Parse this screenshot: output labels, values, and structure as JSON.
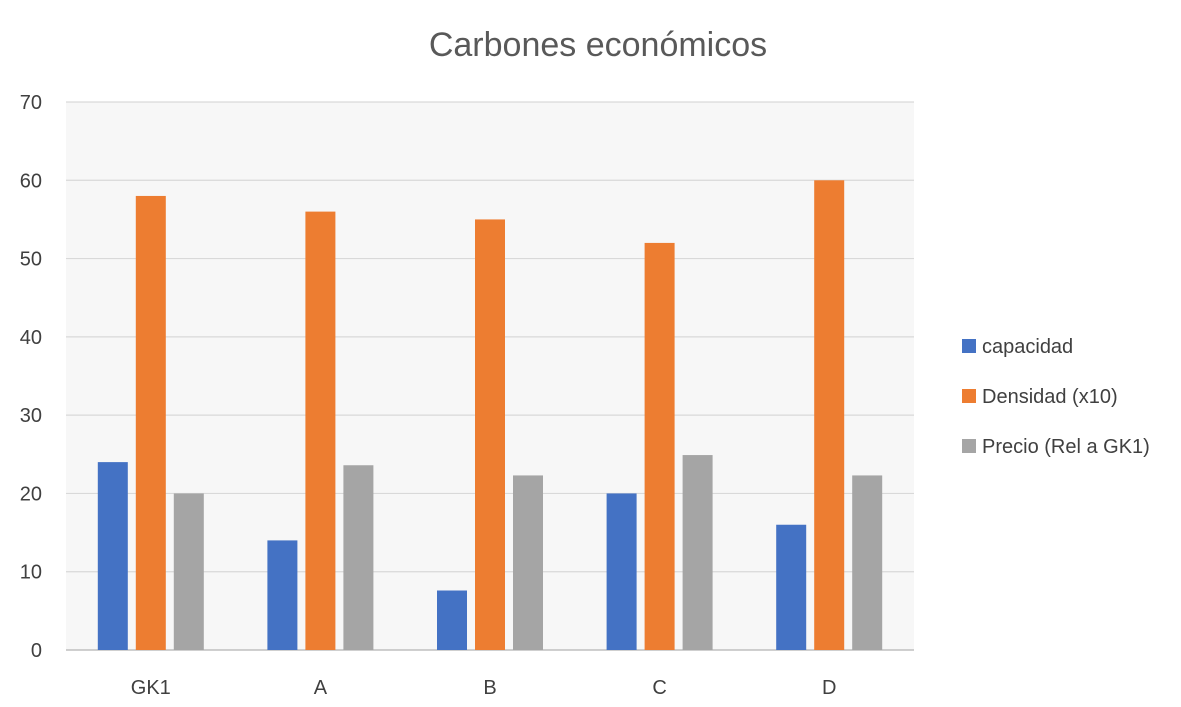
{
  "chart_data": {
    "type": "bar",
    "title": "Carbones económicos",
    "xlabel": "",
    "ylabel": "",
    "categories": [
      "GK1",
      "A",
      "B",
      "C",
      "D"
    ],
    "series": [
      {
        "name": "capacidad",
        "color": "#4472c4",
        "values": [
          24,
          14,
          7.6,
          20,
          16
        ]
      },
      {
        "name": "Densidad (x10)",
        "color": "#ed7d31",
        "values": [
          58,
          56,
          55,
          52,
          60
        ]
      },
      {
        "name": "Precio (Rel a GK1)",
        "color": "#a5a5a5",
        "values": [
          20,
          23.6,
          22.3,
          24.9,
          22.3
        ]
      }
    ],
    "ylim": [
      0,
      70
    ],
    "yticks": [
      "0",
      "10",
      "20",
      "30",
      "40",
      "50",
      "60",
      "70"
    ],
    "grid": true,
    "legend_position": "right",
    "background": "#f7f7f7"
  }
}
